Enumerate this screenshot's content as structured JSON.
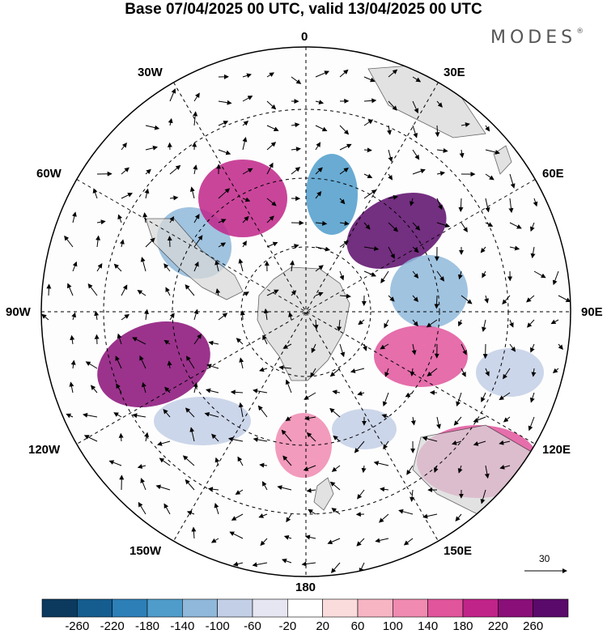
{
  "title": "Base 07/04/2025 00 UTC, valid 13/04/2025 00 UTC",
  "brand": "MODES",
  "brand_mark": "®",
  "meridian_labels": {
    "m0": "0",
    "m30e": "30E",
    "m60e": "60E",
    "m90e": "90E",
    "m120e": "120E",
    "m150e": "150E",
    "m180": "180",
    "m150w": "150W",
    "m120w": "120W",
    "m90w": "90W",
    "m60w": "60W",
    "m30w": "30W"
  },
  "reference_vector": "30",
  "colorbar": {
    "labels": [
      "-260",
      "-220",
      "-180",
      "-140",
      "-100",
      "-60",
      "-20",
      "20",
      "60",
      "100",
      "140",
      "180",
      "220",
      "260"
    ],
    "colors": [
      "#0b3a5e",
      "#155d8f",
      "#2d7fb8",
      "#4f9ccb",
      "#8fb8da",
      "#c3cfe6",
      "#e6e6f2",
      "#ffffff",
      "#fbdcdc",
      "#f7b5c3",
      "#f08ab0",
      "#e0559c",
      "#c02488",
      "#8a0f78",
      "#5a0a6a"
    ]
  },
  "anomaly_cells": [
    {
      "label": "negative",
      "value": -140
    },
    {
      "label": "positive",
      "value": 180
    },
    {
      "label": "positive",
      "value": 260
    },
    {
      "label": "negative",
      "value": -180
    },
    {
      "label": "positive",
      "value": 220
    },
    {
      "label": "negative",
      "value": -140
    },
    {
      "label": "positive",
      "value": 140
    },
    {
      "label": "negative",
      "value": -100
    },
    {
      "label": "positive",
      "value": 100
    },
    {
      "label": "negative",
      "value": -100
    },
    {
      "label": "positive",
      "value": 140
    },
    {
      "label": "negative",
      "value": -100
    }
  ]
}
